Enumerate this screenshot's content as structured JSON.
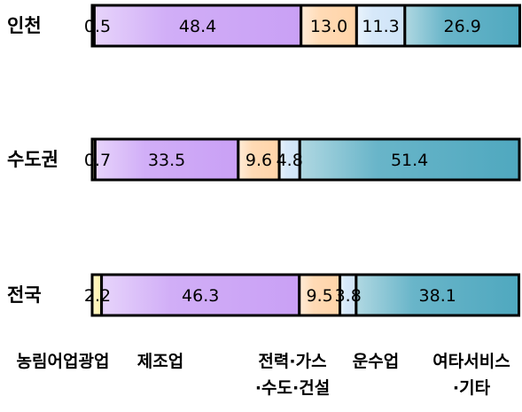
{
  "chart_data": {
    "type": "bar",
    "orientation": "horizontal",
    "stacked": true,
    "percent": true,
    "categories": [
      "인천",
      "수도권",
      "전국"
    ],
    "series": [
      {
        "name": "농림어업광업",
        "values": [
          0.5,
          0.7,
          2.2
        ],
        "color": "#fff3b0"
      },
      {
        "name": "제조업",
        "values": [
          48.4,
          33.5,
          46.3
        ],
        "color": "#c9a0f5"
      },
      {
        "name": "전력·가스·수도·건설",
        "values": [
          13.0,
          9.6,
          9.5
        ],
        "color": "#ffd4a8"
      },
      {
        "name": "운수업",
        "values": [
          11.3,
          4.8,
          3.8
        ],
        "color": "#cfe4f8"
      },
      {
        "name": "여타서비스·기타",
        "values": [
          26.9,
          51.4,
          38.1
        ],
        "color": "#4fa8bf"
      }
    ],
    "value_labels": [
      [
        "0.5",
        "48.4",
        "13.0",
        "11.3",
        "26.9"
      ],
      [
        "0.7",
        "33.5",
        "9.6",
        "4.8",
        "51.4"
      ],
      [
        "2.2",
        "46.3",
        "9.5",
        "3.8",
        "38.1"
      ]
    ],
    "legend_lines": [
      [
        "농림어업광업"
      ],
      [
        "제조업"
      ],
      [
        "전력·가스",
        "·수도·건설"
      ],
      [
        "운수업"
      ],
      [
        "여타서비스",
        "·기타"
      ]
    ],
    "xlim": [
      0,
      100
    ],
    "grid": false,
    "legend_position": "bottom"
  }
}
